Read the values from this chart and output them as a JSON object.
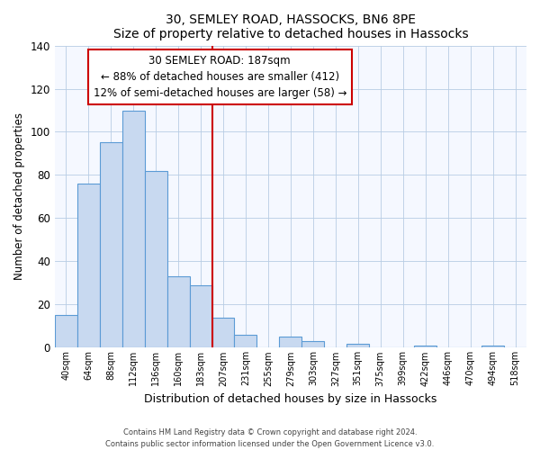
{
  "title": "30, SEMLEY ROAD, HASSOCKS, BN6 8PE",
  "subtitle": "Size of property relative to detached houses in Hassocks",
  "xlabel": "Distribution of detached houses by size in Hassocks",
  "ylabel": "Number of detached properties",
  "bar_labels": [
    "40sqm",
    "64sqm",
    "88sqm",
    "112sqm",
    "136sqm",
    "160sqm",
    "183sqm",
    "207sqm",
    "231sqm",
    "255sqm",
    "279sqm",
    "303sqm",
    "327sqm",
    "351sqm",
    "375sqm",
    "399sqm",
    "422sqm",
    "446sqm",
    "470sqm",
    "494sqm",
    "518sqm"
  ],
  "bar_values": [
    15,
    76,
    95,
    110,
    82,
    33,
    29,
    14,
    6,
    0,
    5,
    3,
    0,
    2,
    0,
    0,
    1,
    0,
    0,
    1,
    0
  ],
  "bar_color": "#c8d9f0",
  "bar_edge_color": "#5b9bd5",
  "vline_color": "#cc0000",
  "annotation_title": "30 SEMLEY ROAD: 187sqm",
  "annotation_line1": "← 88% of detached houses are smaller (412)",
  "annotation_line2": "12% of semi-detached houses are larger (58) →",
  "annotation_box_color": "#ffffff",
  "annotation_box_edge": "#cc0000",
  "ylim": [
    0,
    140
  ],
  "yticks": [
    0,
    20,
    40,
    60,
    80,
    100,
    120,
    140
  ],
  "footer1": "Contains HM Land Registry data © Crown copyright and database right 2024.",
  "footer2": "Contains public sector information licensed under the Open Government Licence v3.0."
}
